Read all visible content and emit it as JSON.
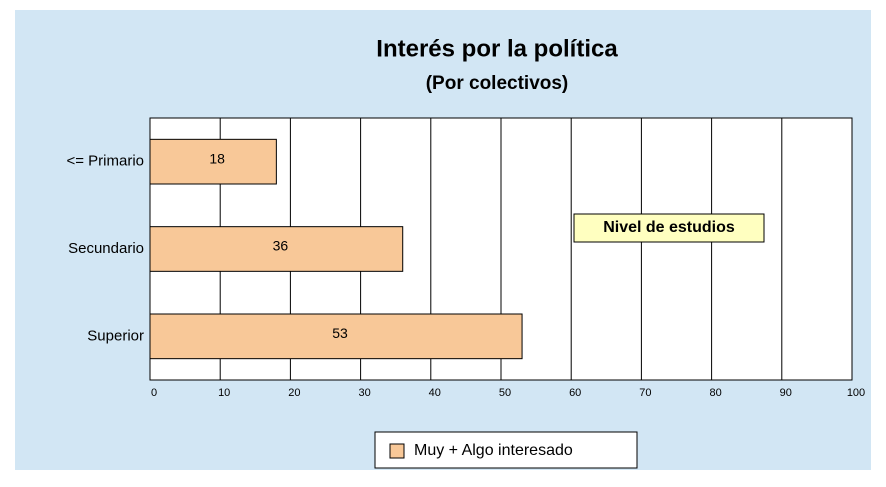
{
  "chart_data": {
    "type": "barh",
    "title": "Interés por la política",
    "subtitle": "(Por colectivos)",
    "annotation": "Nivel de estudios",
    "categories": [
      "<= Primario",
      "Secundario",
      "Superior"
    ],
    "series": [
      {
        "name": "Muy + Algo interesado",
        "color": "#f8c898",
        "values": [
          18,
          36,
          53
        ]
      }
    ],
    "xlim": [
      0,
      100
    ],
    "xticks": [
      0,
      10,
      20,
      30,
      40,
      50,
      60,
      70,
      80,
      90,
      100
    ],
    "grid": true,
    "legend": "bottom"
  }
}
